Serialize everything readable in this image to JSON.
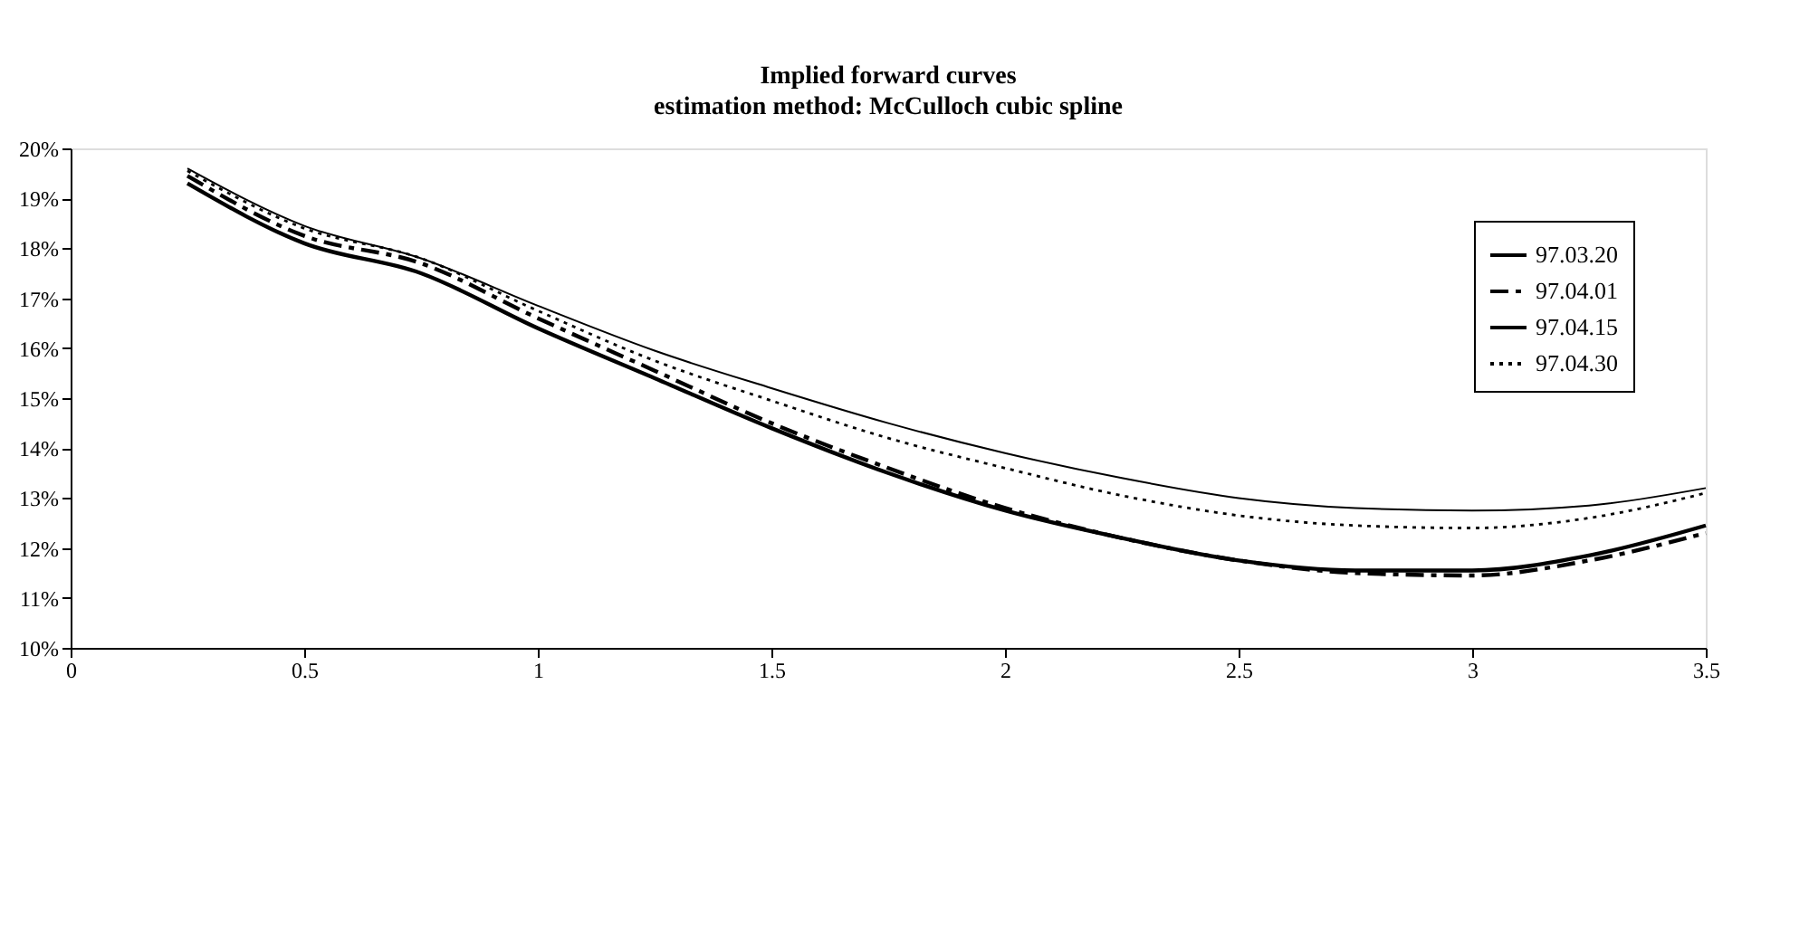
{
  "chart_data": {
    "type": "line",
    "title": "Implied forward curves",
    "subtitle": "estimation method: McCulloch cubic spline",
    "x": [
      0.25,
      0.5,
      0.75,
      1.0,
      1.25,
      1.5,
      1.75,
      2.0,
      2.25,
      2.5,
      2.75,
      3.0,
      3.25,
      3.5
    ],
    "series": [
      {
        "name": "97.03.20",
        "color": "#000000",
        "line_style": "solid",
        "values": [
          19.3,
          18.1,
          17.5,
          16.4,
          15.4,
          14.4,
          13.5,
          12.75,
          12.2,
          11.75,
          11.55,
          11.55,
          11.85,
          12.45
        ]
      },
      {
        "name": "97.04.01",
        "color": "#000000",
        "line_style": "dashed",
        "values": [
          19.45,
          18.25,
          17.7,
          16.6,
          15.55,
          14.5,
          13.6,
          12.8,
          12.2,
          11.75,
          11.5,
          11.45,
          11.75,
          12.3
        ]
      },
      {
        "name": "97.04.15",
        "color": "#000000",
        "line_style": "solid",
        "values": [
          19.6,
          18.45,
          17.8,
          16.85,
          15.95,
          15.2,
          14.5,
          13.9,
          13.4,
          13.0,
          12.8,
          12.75,
          12.85,
          13.2
        ]
      },
      {
        "name": "97.04.30",
        "color": "#000000",
        "line_style": "dotted",
        "values": [
          19.55,
          18.4,
          17.8,
          16.75,
          15.75,
          14.95,
          14.2,
          13.6,
          13.05,
          12.65,
          12.45,
          12.4,
          12.6,
          13.1
        ]
      }
    ],
    "xlim": [
      0,
      3.5
    ],
    "xticks": [
      0,
      0.5,
      1,
      1.5,
      2,
      2.5,
      3,
      3.5
    ],
    "ylim": [
      10,
      20
    ],
    "yticks": [
      {
        "value": 10,
        "label": "10%"
      },
      {
        "value": 11,
        "label": "11%"
      },
      {
        "value": 12,
        "label": "12%"
      },
      {
        "value": 13,
        "label": "13%"
      },
      {
        "value": 14,
        "label": "14%"
      },
      {
        "value": 15,
        "label": "15%"
      },
      {
        "value": 16,
        "label": "16%"
      },
      {
        "value": 17,
        "label": "17%"
      },
      {
        "value": 18,
        "label": "18%"
      },
      {
        "value": 19,
        "label": "19%"
      },
      {
        "value": 20,
        "label": "20%"
      }
    ],
    "grid": false,
    "legend": "top right",
    "marker": "none"
  }
}
